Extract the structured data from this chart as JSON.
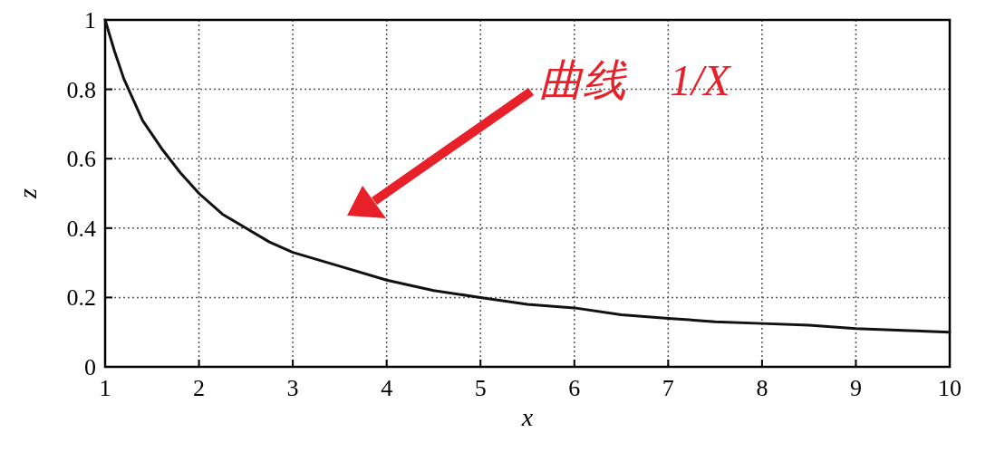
{
  "chart_data": {
    "type": "line",
    "xlabel": "x",
    "ylabel": "z",
    "xlim": [
      1,
      10
    ],
    "ylim": [
      0,
      1
    ],
    "xticks": [
      1,
      2,
      3,
      4,
      5,
      6,
      7,
      8,
      9,
      10
    ],
    "yticks": [
      0,
      0.2,
      0.4,
      0.6,
      0.8,
      1
    ],
    "grid": true,
    "line_style": "solid",
    "annotations": [
      "曲线　1/X"
    ],
    "x": [
      1,
      1.1,
      1.2,
      1.3,
      1.4,
      1.5,
      1.6,
      1.8,
      2,
      2.25,
      2.5,
      2.75,
      3,
      3.5,
      4,
      4.5,
      5,
      5.5,
      6,
      6.5,
      7,
      7.5,
      8,
      8.5,
      9,
      9.5,
      10
    ],
    "series": [
      {
        "color": "#111111",
        "values": [
          1,
          0.91,
          0.83,
          0.77,
          0.71,
          0.67,
          0.63,
          0.56,
          0.5,
          0.44,
          0.4,
          0.36,
          0.33,
          0.29,
          0.25,
          0.22,
          0.2,
          0.18,
          0.17,
          0.15,
          0.14,
          0.13,
          0.125,
          0.12,
          0.11,
          0.105,
          0.1
        ]
      }
    ]
  }
}
